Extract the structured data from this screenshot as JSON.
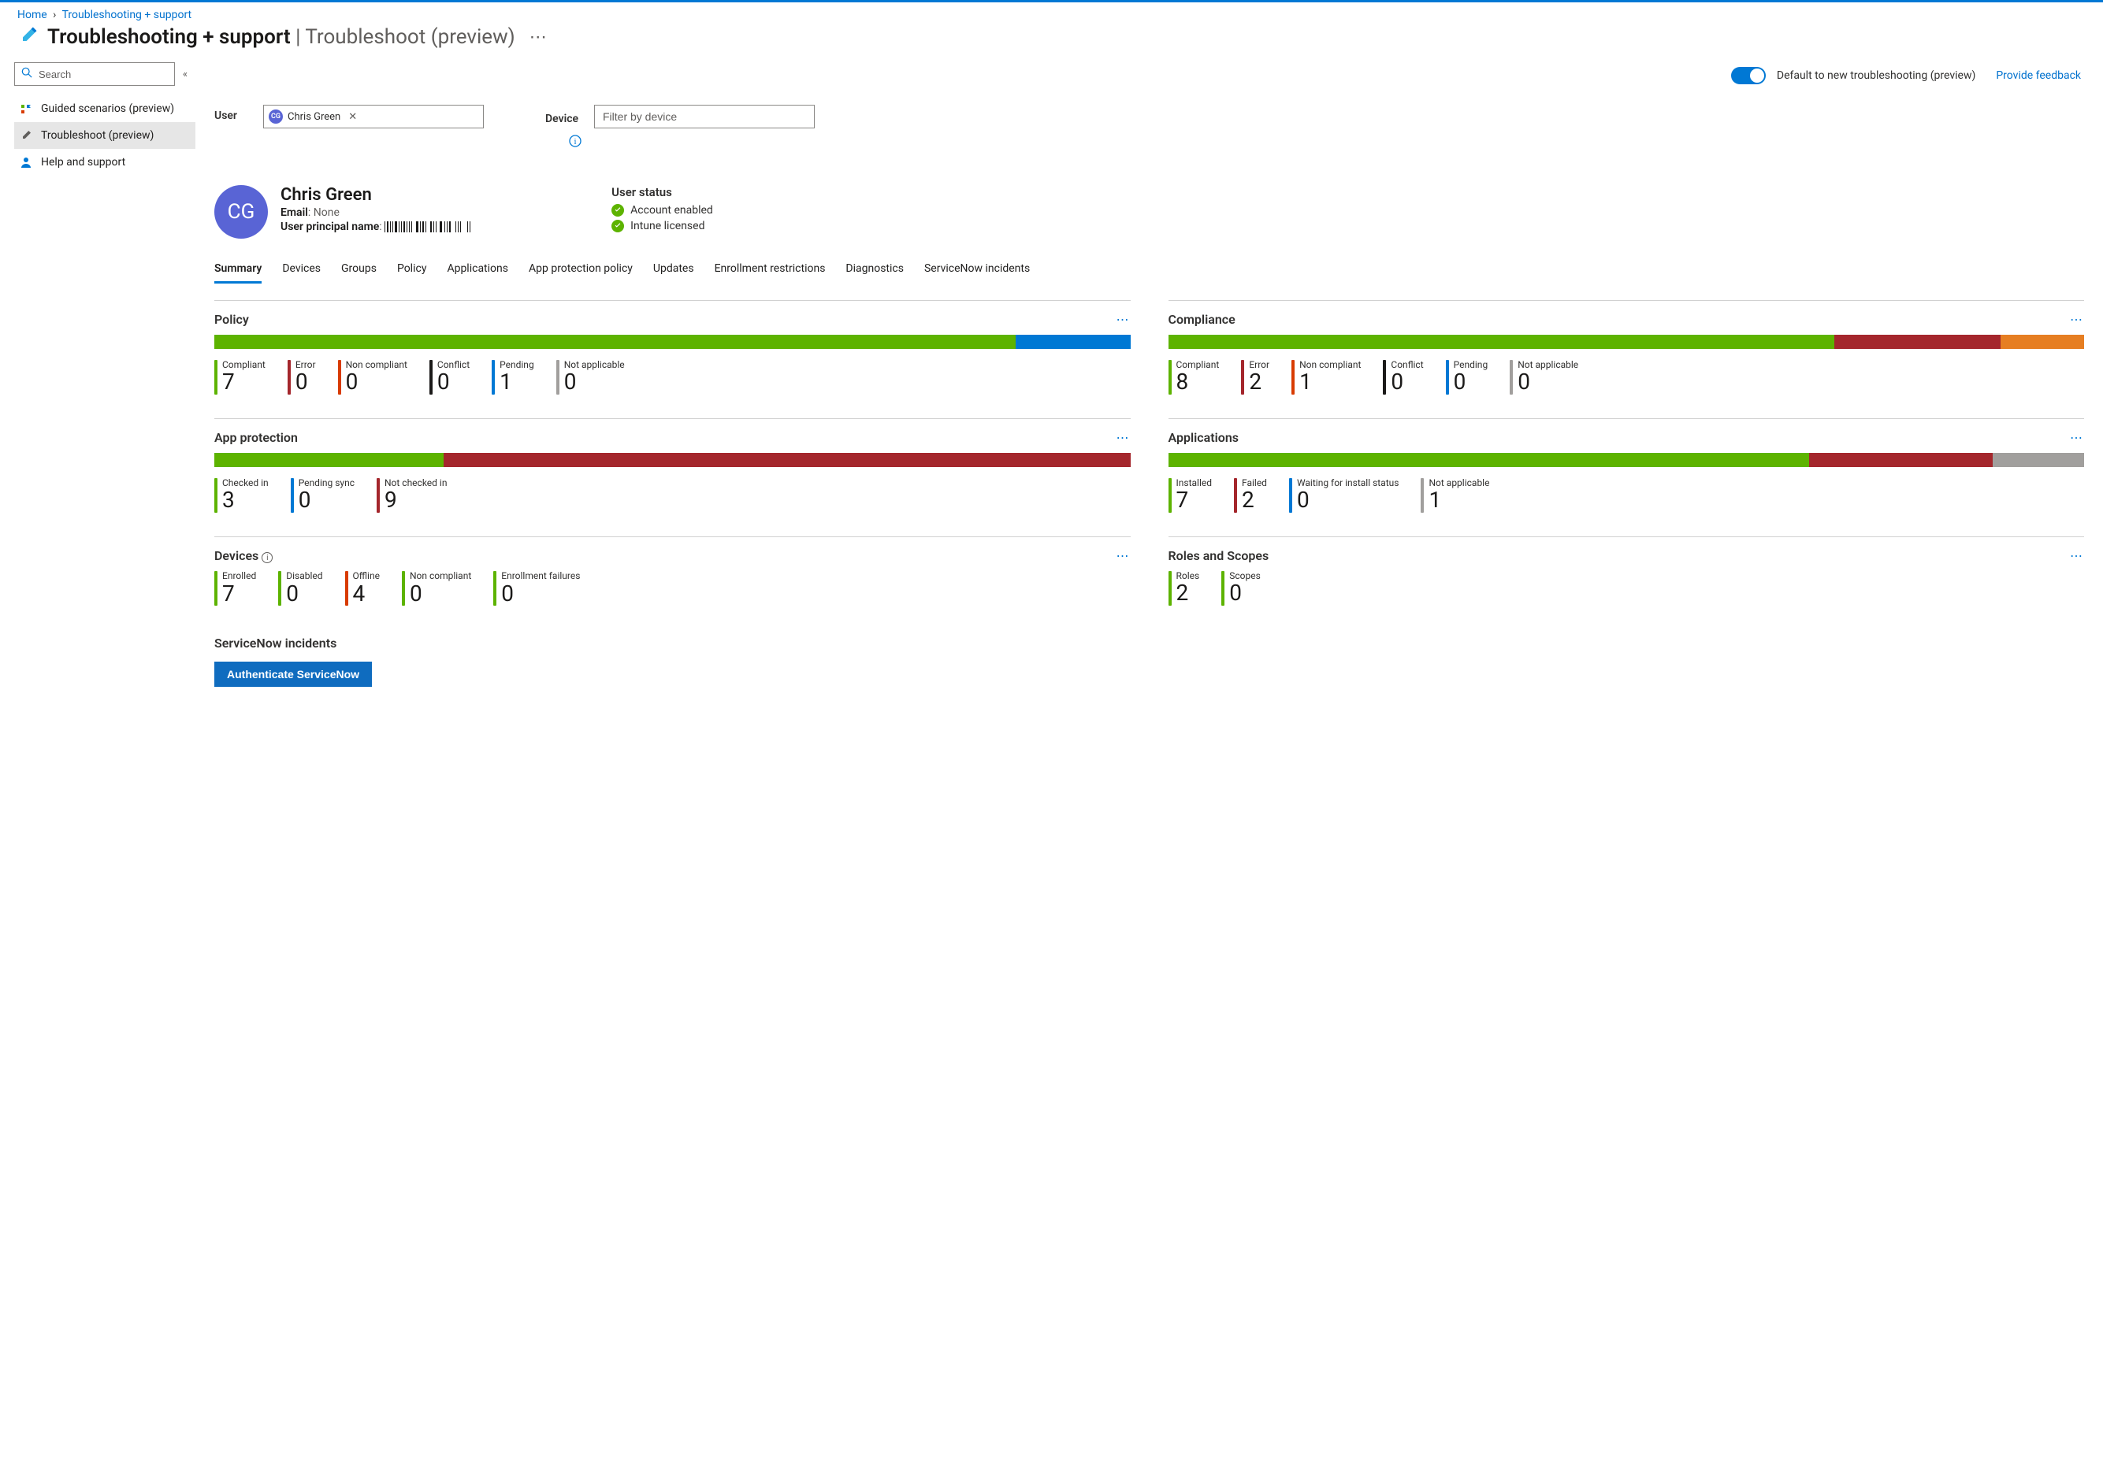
{
  "colors": {
    "accent": "#0078d4",
    "green": "#5db300",
    "red": "#a4262c",
    "orange": "#d83b01",
    "darkorange": "#e67e22",
    "blue": "#0078d4",
    "gray": "#a19f9d",
    "black": "#1b1a19"
  },
  "breadcrumb": {
    "items": [
      "Home",
      "Troubleshooting + support"
    ],
    "sep": "›"
  },
  "title": {
    "main": "Troubleshooting + support",
    "sub": "Troubleshoot (preview)"
  },
  "sidebar": {
    "search_placeholder": "Search",
    "items": [
      {
        "label": "Guided scenarios (preview)",
        "icon": "guided",
        "active": false
      },
      {
        "label": "Troubleshoot (preview)",
        "icon": "wrench",
        "active": true
      },
      {
        "label": "Help and support",
        "icon": "person",
        "active": false
      }
    ]
  },
  "topbar": {
    "toggle_label": "Default to new troubleshooting (preview)",
    "feedback": "Provide feedback"
  },
  "filters": {
    "user_label": "User",
    "user_chip_name": "Chris Green",
    "user_chip_initials": "CG",
    "device_label": "Device",
    "device_placeholder": "Filter by device"
  },
  "user_card": {
    "initials": "CG",
    "name": "Chris Green",
    "email_label": "Email",
    "email_value": "None",
    "upn_label": "User principal name",
    "status_title": "User status",
    "status_items": [
      "Account enabled",
      "Intune licensed"
    ]
  },
  "tabs": [
    "Summary",
    "Devices",
    "Groups",
    "Policy",
    "Applications",
    "App protection policy",
    "Updates",
    "Enrollment restrictions",
    "Diagnostics",
    "ServiceNow incidents"
  ],
  "active_tab": 0,
  "cards": {
    "policy": {
      "title": "Policy",
      "bar": [
        {
          "color": "#5db300",
          "flex": 7
        },
        {
          "color": "#0078d4",
          "flex": 1
        }
      ],
      "metrics": [
        {
          "label": "Compliant",
          "val": "7",
          "color": "#5db300"
        },
        {
          "label": "Error",
          "val": "0",
          "color": "#a4262c"
        },
        {
          "label": "Non compliant",
          "val": "0",
          "color": "#d83b01"
        },
        {
          "label": "Conflict",
          "val": "0",
          "color": "#1b1a19"
        },
        {
          "label": "Pending",
          "val": "1",
          "color": "#0078d4"
        },
        {
          "label": "Not applicable",
          "val": "0",
          "color": "#a19f9d"
        }
      ]
    },
    "compliance": {
      "title": "Compliance",
      "bar": [
        {
          "color": "#5db300",
          "flex": 8
        },
        {
          "color": "#a4262c",
          "flex": 2
        },
        {
          "color": "#e67e22",
          "flex": 1
        }
      ],
      "metrics": [
        {
          "label": "Compliant",
          "val": "8",
          "color": "#5db300"
        },
        {
          "label": "Error",
          "val": "2",
          "color": "#a4262c"
        },
        {
          "label": "Non compliant",
          "val": "1",
          "color": "#d83b01"
        },
        {
          "label": "Conflict",
          "val": "0",
          "color": "#1b1a19"
        },
        {
          "label": "Pending",
          "val": "0",
          "color": "#0078d4"
        },
        {
          "label": "Not applicable",
          "val": "0",
          "color": "#a19f9d"
        }
      ]
    },
    "app_protection": {
      "title": "App protection",
      "bar": [
        {
          "color": "#5db300",
          "flex": 3
        },
        {
          "color": "#a4262c",
          "flex": 9
        }
      ],
      "metrics": [
        {
          "label": "Checked in",
          "val": "3",
          "color": "#5db300"
        },
        {
          "label": "Pending sync",
          "val": "0",
          "color": "#0078d4"
        },
        {
          "label": "Not checked in",
          "val": "9",
          "color": "#a4262c"
        }
      ]
    },
    "applications": {
      "title": "Applications",
      "bar": [
        {
          "color": "#5db300",
          "flex": 7
        },
        {
          "color": "#a4262c",
          "flex": 2
        },
        {
          "color": "#a19f9d",
          "flex": 1
        }
      ],
      "metrics": [
        {
          "label": "Installed",
          "val": "7",
          "color": "#5db300"
        },
        {
          "label": "Failed",
          "val": "2",
          "color": "#a4262c"
        },
        {
          "label": "Waiting for install status",
          "val": "0",
          "color": "#0078d4"
        },
        {
          "label": "Not applicable",
          "val": "1",
          "color": "#a19f9d"
        }
      ]
    },
    "devices": {
      "title": "Devices",
      "has_info": true,
      "metrics": [
        {
          "label": "Enrolled",
          "val": "7",
          "color": "#5db300"
        },
        {
          "label": "Disabled",
          "val": "0",
          "color": "#5db300"
        },
        {
          "label": "Offline",
          "val": "4",
          "color": "#d83b01"
        },
        {
          "label": "Non compliant",
          "val": "0",
          "color": "#5db300"
        },
        {
          "label": "Enrollment failures",
          "val": "0",
          "color": "#5db300"
        }
      ]
    },
    "roles_scopes": {
      "title": "Roles and Scopes",
      "metrics": [
        {
          "label": "Roles",
          "val": "2",
          "color": "#5db300"
        },
        {
          "label": "Scopes",
          "val": "0",
          "color": "#5db300"
        }
      ]
    }
  },
  "servicenow": {
    "title": "ServiceNow incidents",
    "button": "Authenticate ServiceNow"
  }
}
